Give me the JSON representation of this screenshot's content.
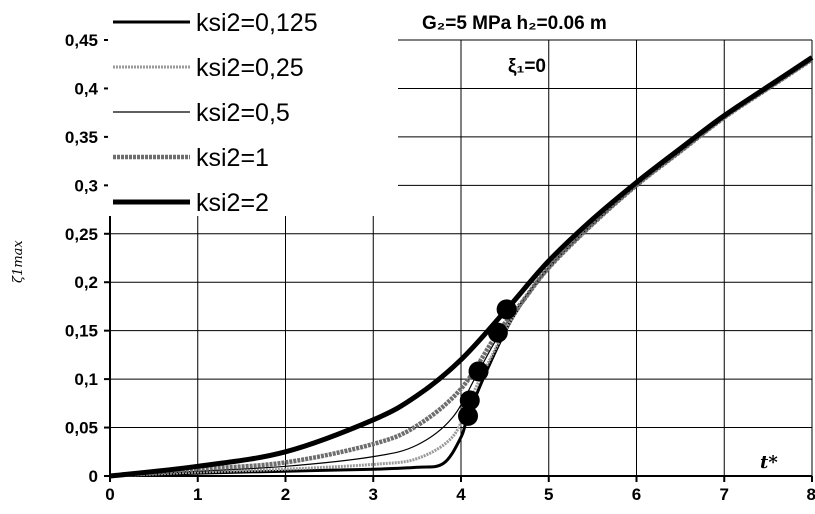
{
  "chart_data": {
    "type": "line",
    "title": "",
    "annotation_params": "G₂=5 MPa h₂=0.06 m",
    "annotation_xi": "ξ₁=0",
    "xlabel": "t*",
    "ylabel": "ζ1max",
    "xlim": [
      0,
      8
    ],
    "ylim": [
      0,
      0.45
    ],
    "x_ticks": [
      "0",
      "1",
      "2",
      "3",
      "4",
      "5",
      "6",
      "7",
      "8"
    ],
    "y_ticks": [
      "0",
      "0,05",
      "0,1",
      "0,15",
      "0,2",
      "0,25",
      "0,3",
      "0,35",
      "0,4",
      "0,45"
    ],
    "grid": true,
    "legend_position": "top-left",
    "series": [
      {
        "name": "ksi2=0,125",
        "style": "solid-thick",
        "color": "#000000",
        "marker": [
          4.08,
          0.062
        ],
        "points": [
          [
            0,
            0
          ],
          [
            1,
            0.003
          ],
          [
            2,
            0.005
          ],
          [
            3,
            0.007
          ],
          [
            3.5,
            0.009
          ],
          [
            3.8,
            0.013
          ],
          [
            4.0,
            0.04
          ],
          [
            4.08,
            0.062
          ],
          [
            4.3,
            0.11
          ],
          [
            4.6,
            0.165
          ],
          [
            5,
            0.215
          ],
          [
            5.5,
            0.26
          ],
          [
            6,
            0.3
          ],
          [
            6.5,
            0.335
          ],
          [
            7,
            0.37
          ],
          [
            7.5,
            0.4
          ],
          [
            8,
            0.43
          ]
        ]
      },
      {
        "name": "ksi2=0,25",
        "style": "dotted-gray",
        "color": "#999999",
        "marker": [
          4.1,
          0.078
        ],
        "points": [
          [
            0,
            0
          ],
          [
            1,
            0.004
          ],
          [
            2,
            0.007
          ],
          [
            3,
            0.012
          ],
          [
            3.5,
            0.018
          ],
          [
            3.9,
            0.04
          ],
          [
            4.1,
            0.078
          ],
          [
            4.3,
            0.115
          ],
          [
            4.6,
            0.165
          ],
          [
            5,
            0.215
          ],
          [
            5.5,
            0.26
          ],
          [
            6,
            0.3
          ],
          [
            6.5,
            0.335
          ],
          [
            7,
            0.37
          ],
          [
            7.5,
            0.4
          ],
          [
            8,
            0.43
          ]
        ]
      },
      {
        "name": "ksi2=0,5",
        "style": "solid-thin",
        "color": "#000000",
        "marker": [
          4.2,
          0.108
        ],
        "points": [
          [
            0,
            0
          ],
          [
            1,
            0.005
          ],
          [
            2,
            0.01
          ],
          [
            3,
            0.02
          ],
          [
            3.5,
            0.032
          ],
          [
            3.9,
            0.06
          ],
          [
            4.2,
            0.108
          ],
          [
            4.5,
            0.155
          ],
          [
            5,
            0.215
          ],
          [
            5.5,
            0.26
          ],
          [
            6,
            0.3
          ],
          [
            6.5,
            0.335
          ],
          [
            7,
            0.37
          ],
          [
            7.5,
            0.4
          ],
          [
            8,
            0.43
          ]
        ]
      },
      {
        "name": "ksi2=1",
        "style": "thick-gray",
        "color": "#666666",
        "marker": [
          4.42,
          0.148
        ],
        "points": [
          [
            0,
            0
          ],
          [
            1,
            0.007
          ],
          [
            2,
            0.014
          ],
          [
            3,
            0.033
          ],
          [
            3.5,
            0.052
          ],
          [
            4,
            0.09
          ],
          [
            4.42,
            0.148
          ],
          [
            4.7,
            0.18
          ],
          [
            5,
            0.215
          ],
          [
            5.5,
            0.26
          ],
          [
            6,
            0.3
          ],
          [
            6.5,
            0.335
          ],
          [
            7,
            0.37
          ],
          [
            7.5,
            0.4
          ],
          [
            8,
            0.43
          ]
        ]
      },
      {
        "name": "ksi2=2",
        "style": "solid-bold",
        "color": "#000000",
        "marker": [
          4.52,
          0.172
        ],
        "points": [
          [
            0,
            0
          ],
          [
            1,
            0.01
          ],
          [
            2,
            0.025
          ],
          [
            3,
            0.058
          ],
          [
            3.5,
            0.083
          ],
          [
            4,
            0.12
          ],
          [
            4.52,
            0.172
          ],
          [
            5,
            0.222
          ],
          [
            5.5,
            0.265
          ],
          [
            6,
            0.303
          ],
          [
            6.5,
            0.338
          ],
          [
            7,
            0.372
          ],
          [
            7.5,
            0.402
          ],
          [
            8,
            0.432
          ]
        ]
      }
    ]
  }
}
